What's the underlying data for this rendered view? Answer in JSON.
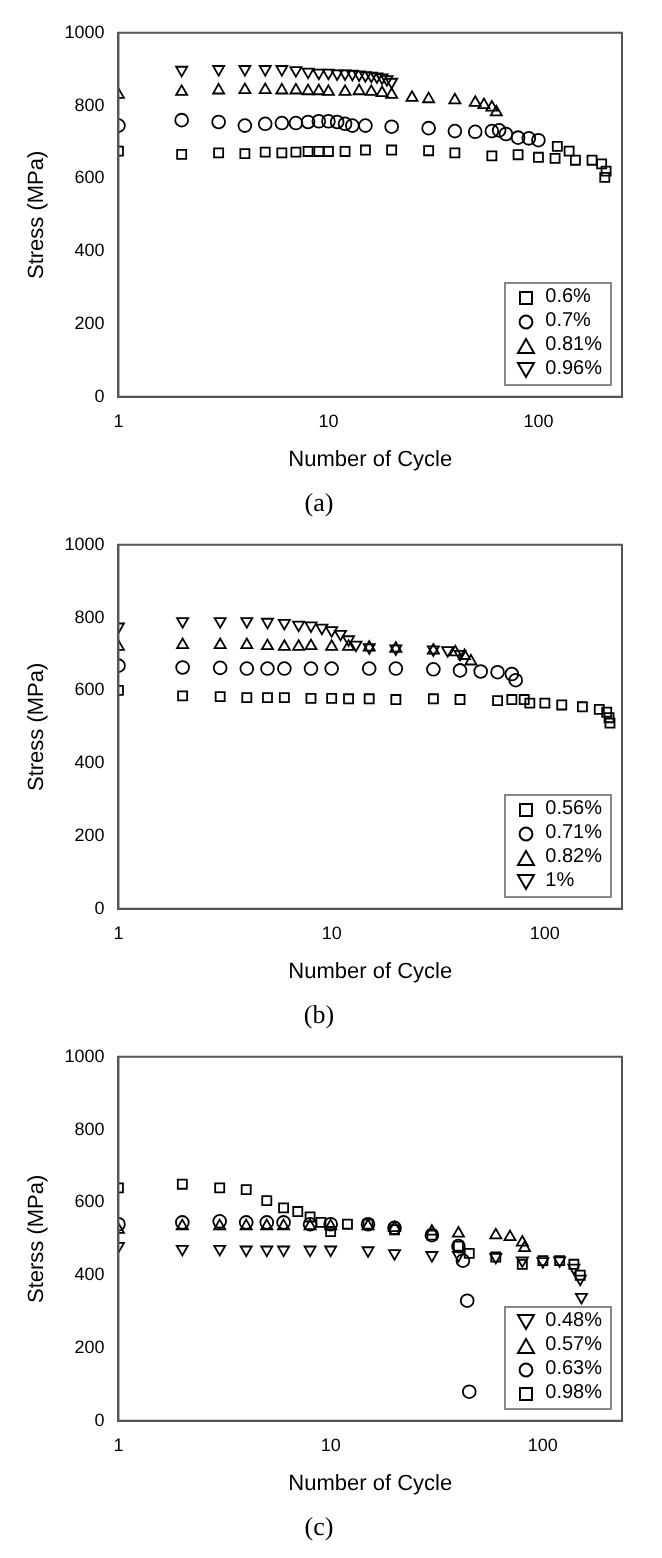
{
  "chart_data": [
    {
      "type": "scatter",
      "title": "(a)",
      "xlabel": "Number of Cycle",
      "ylabel": "Stress (MPa)",
      "log": "x",
      "xlim": [
        1,
        250
      ],
      "xticks": [
        1,
        10,
        100
      ],
      "ylim": [
        0,
        1000
      ],
      "yticks": [
        0,
        200,
        400,
        600,
        800,
        1000
      ],
      "grid": false,
      "legend": "bottom right",
      "series": [
        {
          "name": "0.6%",
          "color": "#000000",
          "marker": "square",
          "x": [
            1,
            2,
            3,
            4,
            5,
            6,
            7,
            8,
            9,
            10,
            12,
            15,
            20,
            30,
            40,
            60,
            80,
            100,
            120,
            123,
            140,
            150,
            180,
            200,
            210,
            207
          ],
          "values": [
            675,
            666,
            670,
            668,
            672,
            670,
            672,
            674,
            674,
            674,
            674,
            678,
            678,
            676,
            670,
            662,
            665,
            658,
            655,
            688,
            675,
            650,
            650,
            640,
            620,
            603
          ]
        },
        {
          "name": "0.7%",
          "color": "#000000",
          "marker": "circle",
          "x": [
            1,
            2,
            3,
            4,
            5,
            6,
            7,
            8,
            9,
            10,
            11,
            12,
            13,
            15,
            20,
            30,
            40,
            50,
            60,
            65,
            70,
            80,
            90,
            100
          ],
          "values": [
            745,
            760,
            755,
            745,
            750,
            752,
            752,
            755,
            757,
            757,
            755,
            750,
            745,
            745,
            742,
            738,
            730,
            728,
            730,
            732,
            722,
            712,
            710,
            705
          ]
        },
        {
          "name": "0.81%",
          "color": "#000000",
          "marker": "triangle",
          "x": [
            1,
            2,
            3,
            4,
            5,
            6,
            7,
            8,
            9,
            10,
            12,
            14,
            16,
            18,
            20,
            25,
            30,
            40,
            50,
            55,
            60,
            63
          ],
          "values": [
            830,
            838,
            842,
            843,
            843,
            842,
            842,
            840,
            840,
            838,
            838,
            840,
            838,
            835,
            830,
            822,
            818,
            815,
            808,
            802,
            795,
            782
          ]
        },
        {
          "name": "0.96%",
          "color": "#000000",
          "marker": "triangle-down",
          "x": [
            2,
            3,
            4,
            5,
            6,
            7,
            8,
            9,
            10,
            11,
            12,
            13,
            14,
            15,
            16,
            17,
            18,
            19,
            20
          ],
          "values": [
            898,
            900,
            900,
            900,
            900,
            897,
            893,
            890,
            890,
            888,
            888,
            887,
            885,
            883,
            882,
            880,
            877,
            872,
            865
          ]
        }
      ]
    },
    {
      "type": "scatter",
      "title": "(b)",
      "xlabel": "Number of Cycle",
      "ylabel": "Stress (MPa)",
      "log": "x",
      "xlim": [
        1,
        230
      ],
      "xticks": [
        1,
        10,
        100
      ],
      "ylim": [
        0,
        1000
      ],
      "yticks": [
        0,
        200,
        400,
        600,
        800,
        1000
      ],
      "grid": false,
      "legend": "bottom right",
      "series": [
        {
          "name": "0.56%",
          "color": "#000000",
          "marker": "square",
          "x": [
            1,
            2,
            3,
            4,
            5,
            6,
            8,
            10,
            12,
            15,
            20,
            30,
            40,
            60,
            70,
            80,
            85,
            100,
            120,
            150,
            180,
            195,
            200,
            202
          ],
          "values": [
            600,
            585,
            583,
            580,
            580,
            580,
            578,
            578,
            577,
            577,
            575,
            577,
            575,
            572,
            575,
            575,
            565,
            565,
            560,
            555,
            548,
            540,
            525,
            510
          ]
        },
        {
          "name": "0.71%",
          "color": "#000000",
          "marker": "circle",
          "x": [
            1,
            2,
            3,
            4,
            5,
            6,
            8,
            10,
            15,
            20,
            30,
            40,
            50,
            60,
            70,
            73
          ],
          "values": [
            668,
            663,
            662,
            660,
            660,
            660,
            660,
            660,
            660,
            660,
            658,
            655,
            652,
            650,
            645,
            628
          ]
        },
        {
          "name": "0.82%",
          "color": "#000000",
          "marker": "triangle",
          "x": [
            1,
            2,
            3,
            4,
            5,
            6,
            7,
            8,
            10,
            12,
            15,
            20,
            30,
            38,
            42,
            45
          ],
          "values": [
            720,
            725,
            725,
            725,
            722,
            720,
            720,
            722,
            720,
            720,
            718,
            715,
            710,
            705,
            695,
            680
          ]
        },
        {
          "name": "1%",
          "color": "#000000",
          "marker": "triangle-down",
          "x": [
            1,
            2,
            3,
            4,
            5,
            6,
            7,
            8,
            9,
            10,
            11,
            12,
            13,
            15,
            20,
            30,
            35,
            40
          ],
          "values": [
            775,
            790,
            790,
            790,
            788,
            785,
            780,
            778,
            772,
            765,
            755,
            740,
            725,
            718,
            715,
            712,
            710,
            700
          ]
        }
      ]
    },
    {
      "type": "scatter",
      "title": "(c)",
      "xlabel": "Number of Cycle",
      "ylabel": "Sterss (MPa)",
      "log": "x",
      "xlim": [
        1,
        236
      ],
      "xticks": [
        1,
        10,
        100
      ],
      "ylim": [
        0,
        1000
      ],
      "yticks": [
        0,
        200,
        400,
        600,
        800,
        1000
      ],
      "grid": false,
      "legend": "bottom right",
      "series": [
        {
          "name": "0.48%",
          "color": "#000000",
          "marker": "triangle-down",
          "x": [
            1,
            2,
            3,
            4,
            5,
            6,
            8,
            10,
            15,
            20,
            30,
            40,
            60,
            80,
            100,
            120,
            140,
            150,
            152
          ],
          "values": [
            480,
            472,
            472,
            470,
            470,
            470,
            470,
            470,
            468,
            460,
            455,
            455,
            450,
            440,
            438,
            440,
            420,
            390,
            340
          ]
        },
        {
          "name": "0.57%",
          "color": "#000000",
          "marker": "triangle",
          "x": [
            1,
            2,
            3,
            4,
            5,
            6,
            8,
            10,
            15,
            20,
            30,
            40,
            60,
            70,
            80,
            82
          ],
          "values": [
            525,
            535,
            535,
            535,
            535,
            535,
            535,
            535,
            535,
            530,
            520,
            515,
            510,
            505,
            490,
            475
          ]
        },
        {
          "name": "0.63%",
          "color": "#000000",
          "marker": "circle",
          "x": [
            1,
            2,
            3,
            4,
            5,
            6,
            8,
            10,
            15,
            20,
            30,
            40,
            42,
            44,
            45
          ],
          "values": [
            540,
            545,
            548,
            545,
            545,
            545,
            540,
            540,
            540,
            530,
            510,
            480,
            440,
            330,
            80
          ]
        },
        {
          "name": "0.98%",
          "color": "#000000",
          "marker": "square",
          "x": [
            1,
            2,
            3,
            4,
            5,
            6,
            7,
            8,
            9,
            10,
            12,
            15,
            20,
            30,
            40,
            45,
            60,
            80,
            100,
            120,
            140,
            150
          ],
          "values": [
            640,
            650,
            640,
            635,
            605,
            585,
            575,
            560,
            545,
            520,
            540,
            540,
            525,
            510,
            480,
            460,
            450,
            430,
            440,
            440,
            430,
            400
          ]
        }
      ]
    }
  ]
}
